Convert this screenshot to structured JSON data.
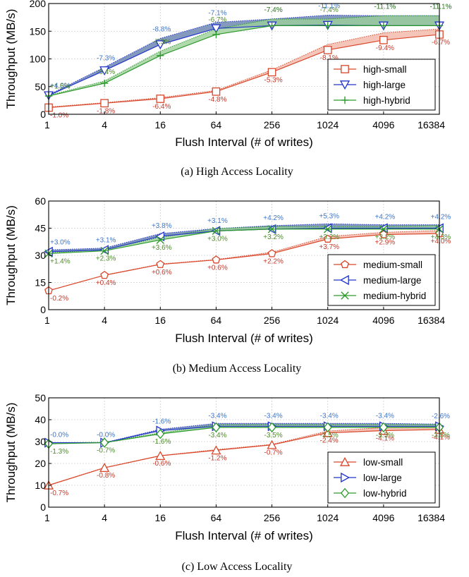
{
  "colors": {
    "small": "#d9472b",
    "large": "#2233cc",
    "hybrid": "#2c9a2c",
    "small_label": "#c0392b",
    "large_label": "#3d74c9",
    "hybrid_label": "#4e8a2a",
    "small_band": "#f4b6a8",
    "large_band": "#5a78a8",
    "hybrid_band": "#9dcf9a"
  },
  "chart_data": [
    {
      "type": "line",
      "title": "",
      "caption": "(a) High Access Locality",
      "xlabel": "Flush Interval (# of writes)",
      "ylabel": "Throughput (MB/s)",
      "x_scale": "log",
      "x": [
        1,
        4,
        16,
        64,
        256,
        1024,
        4096,
        16384
      ],
      "ylim": [
        0,
        200
      ],
      "yticks": [
        0,
        50,
        100,
        150,
        200
      ],
      "legend_position": "bottom-right",
      "grid": true,
      "series": [
        {
          "name": "high-small",
          "marker": "square",
          "values": [
            12,
            20,
            28,
            41,
            76,
            116,
            134,
            144
          ],
          "upper": [
            13,
            21,
            30,
            43,
            80,
            126,
            147,
            154
          ],
          "labels": [
            "-1.0%",
            "-1.8%",
            "-6.4%",
            "-4.8%",
            "-5.3%",
            "-8.1%",
            "-9.4%",
            "-6.7%"
          ]
        },
        {
          "name": "high-large",
          "marker": "triangle-down",
          "values": [
            34,
            79,
            126,
            155,
            160,
            161,
            160,
            160
          ],
          "upper": [
            35,
            85,
            137,
            166,
            172,
            179,
            178,
            178
          ],
          "labels": [
            "+4.0%",
            "-7.3%",
            "-8.8%",
            "-7.1%",
            "-7.4%",
            "-11.1%",
            "-11.1%",
            "-11.1%"
          ]
        },
        {
          "name": "high-hybrid",
          "marker": "plus",
          "values": [
            33,
            56,
            106,
            144,
            160,
            160,
            160,
            160
          ],
          "upper": [
            34,
            60,
            114,
            154,
            172,
            172,
            178,
            178
          ],
          "labels": [
            "+1.5%",
            "-6.4%",
            "-7.3%",
            "-6.7%",
            "-7.4%",
            "-7.4%",
            "-11.1%",
            "-11.1%"
          ]
        }
      ]
    },
    {
      "type": "line",
      "title": "",
      "caption": "(b) Medium Access Locality",
      "xlabel": "Flush Interval (# of writes)",
      "ylabel": "Throughput (MB/s)",
      "x_scale": "log",
      "x": [
        1,
        4,
        16,
        64,
        256,
        1024,
        4096,
        16384
      ],
      "ylim": [
        0,
        60
      ],
      "yticks": [
        0,
        15,
        30,
        45,
        60
      ],
      "legend_position": "bottom-right",
      "grid": true,
      "series": [
        {
          "name": "medium-small",
          "marker": "pentagon",
          "values": [
            10.5,
            19,
            25,
            27.5,
            31,
            39,
            41.5,
            42
          ],
          "upper": [
            10.5,
            19.1,
            25.2,
            27.7,
            31.7,
            40.4,
            42.7,
            43.7
          ],
          "labels": [
            "-0.2%",
            "+0.4%",
            "+0.6%",
            "+0.6%",
            "+2.2%",
            "+3.7%",
            "+2.9%",
            "+4.0%"
          ]
        },
        {
          "name": "medium-large",
          "marker": "triangle-left",
          "values": [
            32,
            33,
            40.5,
            43.5,
            44.5,
            45,
            45,
            45
          ],
          "upper": [
            33,
            34,
            42,
            44.8,
            46.4,
            47.4,
            46.9,
            46.9
          ],
          "labels": [
            "+3.0%",
            "+3.1%",
            "+3.8%",
            "+3.1%",
            "+4.2%",
            "+5.3%",
            "+4.2%",
            "+4.2%"
          ]
        },
        {
          "name": "medium-hybrid",
          "marker": "cross",
          "values": [
            31,
            32.5,
            38.5,
            43.5,
            44.5,
            44.5,
            44.5,
            44.5
          ],
          "upper": [
            31.4,
            33.2,
            39.9,
            44.8,
            45.9,
            45.9,
            45.9,
            46.4
          ],
          "labels": [
            "+1.4%",
            "+2.3%",
            "+3.6%",
            "+3.0%",
            "+3.2%",
            "+3.2%",
            "+3.2%",
            "+4.3%"
          ]
        }
      ]
    },
    {
      "type": "line",
      "title": "",
      "caption": "(c) Low Access Locality",
      "xlabel": "Flush Interval (# of writes)",
      "ylabel": "Throughput (MB/s)",
      "x_scale": "log",
      "x": [
        1,
        4,
        16,
        64,
        256,
        1024,
        4096,
        16384
      ],
      "ylim": [
        0,
        50
      ],
      "yticks": [
        0,
        10,
        20,
        30,
        40,
        50
      ],
      "legend_position": "bottom-right",
      "grid": true,
      "series": [
        {
          "name": "low-small",
          "marker": "triangle-up",
          "values": [
            10,
            18,
            23.5,
            26,
            28.5,
            34,
            35,
            35.5
          ],
          "upper": [
            10.1,
            18.1,
            23.6,
            26.3,
            28.7,
            34.8,
            36.4,
            37
          ],
          "labels": [
            "-0.7%",
            "-0.8%",
            "-0.6%",
            "-1.2%",
            "-0.7%",
            "-2.4%",
            "-4.1%",
            "-4.1%"
          ]
        },
        {
          "name": "low-large",
          "marker": "triangle-right",
          "values": [
            29.5,
            29.5,
            35,
            37,
            37,
            37,
            37,
            37
          ],
          "upper": [
            29.5,
            29.5,
            35.6,
            38.3,
            38.3,
            38.3,
            38.3,
            38
          ],
          "labels": [
            "-0.0%",
            "-0.0%",
            "-1.6%",
            "-3.4%",
            "-3.4%",
            "-3.4%",
            "-3.4%",
            "-2.6%"
          ]
        },
        {
          "name": "low-hybrid",
          "marker": "diamond",
          "values": [
            29,
            29.5,
            33.5,
            36.5,
            36.5,
            36.5,
            36.5,
            36.5
          ],
          "upper": [
            29.4,
            29.7,
            34,
            37.7,
            37.8,
            37.8,
            37.8,
            37.8
          ],
          "labels": [
            "-1.3%",
            "-0.7%",
            "-1.6%",
            "-3.4%",
            "-3.5%",
            "-3.5%",
            "-3.5%",
            "-3.5%"
          ]
        }
      ]
    }
  ]
}
